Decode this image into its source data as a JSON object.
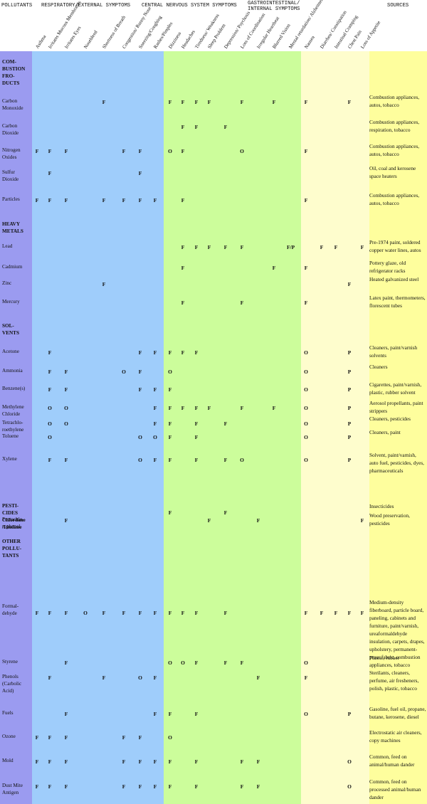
{
  "header": {
    "pollutants": "POLLUTANTS",
    "resp": "RESPIRATORY/EXTERNAL SYMPTOMS",
    "cns": "CENTRAL NERVOUS SYSTEM SYMPTOMS",
    "gi1": "GASTROINTESTINAL/",
    "gi2": "INTERNAL SYMPTOMS",
    "sources": "SOURCES"
  },
  "symptom_labels": [
    "Asthma",
    "Irritates Mucous Membranes",
    "Irritates Eyes",
    "Nosebleed",
    "Shortness of Breath",
    "Congestion/ Runny Nose",
    "Sneezing/Coughing",
    "Rashes/Pimples",
    "Dizziness",
    "Headaches",
    "Tiredness/ Weakness",
    "Sleep Problem",
    "Depression/ Psychosis",
    "Loss of Coordination",
    "Irregular Heartbeat",
    "Blurred Vision",
    "Mental retardation/ Alzheimer's Disease",
    "Nausea",
    "Diarrhea/ Constipation",
    "Intestinal Cramping",
    "Chest Pain",
    "Loss of Appetite"
  ],
  "colors": {
    "purple": "#9b9bf0",
    "blue": "#9fcdfb",
    "green": "#ccfd9b",
    "cream": "#fefdcd",
    "yellow": "#fefe9d"
  },
  "rows": [
    {
      "label": "COM-\nBUSTION\nFRO-\nDUCTS",
      "cat": true,
      "source": "",
      "marks": []
    },
    {
      "label": "Carbon\nMonoxide",
      "source": "Combustion appliances, autos, tobacco",
      "marks": [
        {
          "c": 4,
          "v": "F"
        },
        {
          "c": 8,
          "v": "F"
        },
        {
          "c": 9,
          "v": "F"
        },
        {
          "c": 10,
          "v": "F"
        },
        {
          "c": 11,
          "v": "F"
        },
        {
          "c": 13,
          "v": "F"
        },
        {
          "c": 15,
          "v": "F"
        },
        {
          "c": 17,
          "v": "F"
        },
        {
          "c": 20,
          "v": "F"
        }
      ]
    },
    {
      "label": "Carbon\nDioxide",
      "source": "Combustion appliances, respiration, tobacco",
      "marks": [
        {
          "c": 9,
          "v": "F"
        },
        {
          "c": 10,
          "v": "F"
        },
        {
          "c": 12,
          "v": "F"
        }
      ]
    },
    {
      "label": "Nitrogen\nOxides",
      "source": "Combustion appliances, autos, tobacco",
      "marks": [
        {
          "c": 0,
          "v": "F"
        },
        {
          "c": 1,
          "v": "F"
        },
        {
          "c": 2,
          "v": "F"
        },
        {
          "c": 5,
          "v": "F"
        },
        {
          "c": 6,
          "v": "F"
        },
        {
          "c": 8,
          "v": "O"
        },
        {
          "c": 9,
          "v": "F"
        },
        {
          "c": 13,
          "v": "O"
        },
        {
          "c": 17,
          "v": "F"
        }
      ]
    },
    {
      "label": "Sulfur\nDioxide",
      "source": "Oil, coal and kerosene space heaters",
      "marks": [
        {
          "c": 1,
          "v": "F"
        },
        {
          "c": 6,
          "v": "F"
        }
      ]
    },
    {
      "label": "Particles",
      "source": "Combustion appliances, autos, tobacco",
      "marks": [
        {
          "c": 0,
          "v": "F"
        },
        {
          "c": 1,
          "v": "F"
        },
        {
          "c": 2,
          "v": "F"
        },
        {
          "c": 4,
          "v": "F"
        },
        {
          "c": 5,
          "v": "F"
        },
        {
          "c": 6,
          "v": "F"
        },
        {
          "c": 7,
          "v": "F"
        },
        {
          "c": 9,
          "v": "F"
        },
        {
          "c": 17,
          "v": "F"
        }
      ]
    },
    {
      "label": "HEAVY\nMETALS",
      "cat": true,
      "source": "",
      "marks": []
    },
    {
      "label": "Lead",
      "source": "Pre-1974 paint, soldered copper water lines, autos",
      "marks": [
        {
          "c": 9,
          "v": "F"
        },
        {
          "c": 10,
          "v": "F"
        },
        {
          "c": 11,
          "v": "F"
        },
        {
          "c": 12,
          "v": "F"
        },
        {
          "c": 13,
          "v": "F"
        },
        {
          "c": 16,
          "v": "F/P"
        },
        {
          "c": 18,
          "v": "F"
        },
        {
          "c": 19,
          "v": "F"
        },
        {
          "c": 21,
          "v": "F"
        }
      ]
    },
    {
      "label": "Cadmium",
      "source": "Pottery glaze, old refrigerator racks",
      "marks": [
        {
          "c": 9,
          "v": "F"
        },
        {
          "c": 15,
          "v": "F"
        },
        {
          "c": 17,
          "v": "F"
        }
      ]
    },
    {
      "label": "Zinc",
      "source": "Heated galvanized steel",
      "marks": [
        {
          "c": 4,
          "v": "F"
        },
        {
          "c": 20,
          "v": "F"
        }
      ]
    },
    {
      "label": "Mercury",
      "source": "Latex paint, thermometers, florescent tubes",
      "marks": [
        {
          "c": 9,
          "v": "F"
        },
        {
          "c": 13,
          "v": "F"
        },
        {
          "c": 17,
          "v": "F"
        }
      ]
    },
    {
      "label": "SOL-\nVENTS",
      "cat": true,
      "source": "",
      "marks": []
    },
    {
      "label": "Acetone",
      "source": "Cleaners, paint/varnish solvents",
      "marks": [
        {
          "c": 1,
          "v": "F"
        },
        {
          "c": 6,
          "v": "F"
        },
        {
          "c": 7,
          "v": "F"
        },
        {
          "c": 8,
          "v": "F"
        },
        {
          "c": 9,
          "v": "F"
        },
        {
          "c": 10,
          "v": "F"
        },
        {
          "c": 17,
          "v": "O"
        },
        {
          "c": 20,
          "v": "P"
        }
      ]
    },
    {
      "label": "Ammonia",
      "source": "Cleaners",
      "marks": [
        {
          "c": 1,
          "v": "F"
        },
        {
          "c": 2,
          "v": "F"
        },
        {
          "c": 5,
          "v": "O"
        },
        {
          "c": 6,
          "v": "F"
        },
        {
          "c": 8,
          "v": "O"
        },
        {
          "c": 17,
          "v": "O"
        },
        {
          "c": 20,
          "v": "P"
        }
      ]
    },
    {
      "label": "Benzene(s)",
      "source": "Cigarettes, paint/varnish, plastic, rubber solvent",
      "marks": [
        {
          "c": 1,
          "v": "F"
        },
        {
          "c": 2,
          "v": "F"
        },
        {
          "c": 6,
          "v": "F"
        },
        {
          "c": 7,
          "v": "F"
        },
        {
          "c": 8,
          "v": "F"
        },
        {
          "c": 17,
          "v": "O"
        },
        {
          "c": 20,
          "v": "P"
        }
      ]
    },
    {
      "label": "Methylene\nChloride",
      "source": "Aerosol propellants, paint strippers",
      "marks": [
        {
          "c": 1,
          "v": "O"
        },
        {
          "c": 2,
          "v": "O"
        },
        {
          "c": 7,
          "v": "F"
        },
        {
          "c": 8,
          "v": "F"
        },
        {
          "c": 9,
          "v": "F"
        },
        {
          "c": 10,
          "v": "F"
        },
        {
          "c": 11,
          "v": "F"
        },
        {
          "c": 13,
          "v": "F"
        },
        {
          "c": 15,
          "v": "F"
        },
        {
          "c": 17,
          "v": "O"
        },
        {
          "c": 20,
          "v": "P"
        }
      ]
    },
    {
      "label": "Tetrachlo-\nroethylene",
      "source": "Cleaners, pesticides",
      "marks": [
        {
          "c": 1,
          "v": "O"
        },
        {
          "c": 2,
          "v": "O"
        },
        {
          "c": 7,
          "v": "F"
        },
        {
          "c": 8,
          "v": "F"
        },
        {
          "c": 10,
          "v": "F"
        },
        {
          "c": 12,
          "v": "F"
        },
        {
          "c": 17,
          "v": "O"
        },
        {
          "c": 20,
          "v": "P"
        }
      ]
    },
    {
      "label": "Toluene",
      "source": "Cleaners, paint",
      "marks": [
        {
          "c": 1,
          "v": "O"
        },
        {
          "c": 6,
          "v": "O"
        },
        {
          "c": 7,
          "v": "O"
        },
        {
          "c": 8,
          "v": "F"
        },
        {
          "c": 10,
          "v": "F"
        },
        {
          "c": 17,
          "v": "O"
        },
        {
          "c": 20,
          "v": "P"
        }
      ]
    },
    {
      "label": "Xylene",
      "source": "Solvent, paint/varnish, auto fuel, pesticides, dyes, pharmaceuticals",
      "marks": [
        {
          "c": 1,
          "v": "F"
        },
        {
          "c": 2,
          "v": "F"
        },
        {
          "c": 6,
          "v": "O"
        },
        {
          "c": 7,
          "v": "F"
        },
        {
          "c": 8,
          "v": "F"
        },
        {
          "c": 10,
          "v": "F"
        },
        {
          "c": 12,
          "v": "F"
        },
        {
          "c": 13,
          "v": "O"
        },
        {
          "c": 17,
          "v": "O"
        },
        {
          "c": 20,
          "v": "P"
        }
      ]
    },
    {
      "label": "PESTI-\nCIDES\nChlordane\n/Lindane",
      "cat": true,
      "source": "Insecticides",
      "marks": [
        {
          "c": 8,
          "v": "F"
        },
        {
          "c": 12,
          "v": "F"
        }
      ]
    },
    {
      "label": "Pentachlo-\nrophenol",
      "source": "Wood preservation, pesticides",
      "marks": [
        {
          "c": 2,
          "v": "F"
        },
        {
          "c": 11,
          "v": "F"
        },
        {
          "c": 14,
          "v": "F"
        },
        {
          "c": 21,
          "v": "F"
        }
      ]
    },
    {
      "label": "OTHER\nPOLLU-\nTANTS",
      "cat": true,
      "source": "",
      "marks": []
    },
    {
      "label": "Formal-\ndehyde",
      "source": "Medium-density fiberboard, particle board, paneling, cabinets and furniture, paint/varnish, ureaformaldehyde insulation, carpets, drapes, upholstery, permanent-press fabric, combustion appliances, tobacco",
      "marks": [
        {
          "c": 0,
          "v": "F"
        },
        {
          "c": 1,
          "v": "F"
        },
        {
          "c": 2,
          "v": "F"
        },
        {
          "c": 3,
          "v": "O"
        },
        {
          "c": 4,
          "v": "F"
        },
        {
          "c": 5,
          "v": "F"
        },
        {
          "c": 6,
          "v": "F"
        },
        {
          "c": 7,
          "v": "F"
        },
        {
          "c": 8,
          "v": "F"
        },
        {
          "c": 9,
          "v": "F"
        },
        {
          "c": 10,
          "v": "F"
        },
        {
          "c": 12,
          "v": "F"
        },
        {
          "c": 17,
          "v": "F"
        },
        {
          "c": 18,
          "v": "F"
        },
        {
          "c": 19,
          "v": "F"
        },
        {
          "c": 20,
          "v": "F"
        },
        {
          "c": 21,
          "v": "F"
        }
      ]
    },
    {
      "label": "Styrene",
      "source": "Plastic, rubber",
      "marks": [
        {
          "c": 2,
          "v": "F"
        },
        {
          "c": 8,
          "v": "O"
        },
        {
          "c": 9,
          "v": "O"
        },
        {
          "c": 10,
          "v": "F"
        },
        {
          "c": 12,
          "v": "F"
        },
        {
          "c": 13,
          "v": "F"
        },
        {
          "c": 17,
          "v": "O"
        }
      ]
    },
    {
      "label": "Phenols\n(Carbolic\nAcid)",
      "source": "Sterilants, cleaners, perfume, air fresheners, polish, plastic, tobacco",
      "marks": [
        {
          "c": 1,
          "v": "F"
        },
        {
          "c": 4,
          "v": "F"
        },
        {
          "c": 6,
          "v": "O"
        },
        {
          "c": 7,
          "v": "F"
        },
        {
          "c": 14,
          "v": "F"
        },
        {
          "c": 17,
          "v": "F"
        }
      ]
    },
    {
      "label": "Fuels",
      "source": "Gasoline, fuel oil, propane, butane, kerosene, diesel",
      "marks": [
        {
          "c": 2,
          "v": "F"
        },
        {
          "c": 7,
          "v": "F"
        },
        {
          "c": 8,
          "v": "F"
        },
        {
          "c": 10,
          "v": "F"
        },
        {
          "c": 17,
          "v": "O"
        },
        {
          "c": 20,
          "v": "P"
        }
      ]
    },
    {
      "label": "Ozone",
      "source": "Electrostatic air cleaners, copy machines",
      "marks": [
        {
          "c": 0,
          "v": "F"
        },
        {
          "c": 1,
          "v": "F"
        },
        {
          "c": 2,
          "v": "F"
        },
        {
          "c": 5,
          "v": "F"
        },
        {
          "c": 6,
          "v": "F"
        },
        {
          "c": 8,
          "v": "O"
        }
      ]
    },
    {
      "label": "Mold",
      "source": "Common, feed on animal/human dander",
      "marks": [
        {
          "c": 0,
          "v": "F"
        },
        {
          "c": 1,
          "v": "F"
        },
        {
          "c": 2,
          "v": "F"
        },
        {
          "c": 5,
          "v": "F"
        },
        {
          "c": 6,
          "v": "F"
        },
        {
          "c": 7,
          "v": "F"
        },
        {
          "c": 8,
          "v": "F"
        },
        {
          "c": 10,
          "v": "F"
        },
        {
          "c": 13,
          "v": "F"
        },
        {
          "c": 14,
          "v": "F"
        },
        {
          "c": 20,
          "v": "O"
        }
      ]
    },
    {
      "label": "Dust Mite\nAntigen",
      "source": "Common, feed on processed animal/human dander",
      "marks": [
        {
          "c": 0,
          "v": "F"
        },
        {
          "c": 1,
          "v": "F"
        },
        {
          "c": 2,
          "v": "F"
        },
        {
          "c": 5,
          "v": "F"
        },
        {
          "c": 6,
          "v": "F"
        },
        {
          "c": 7,
          "v": "F"
        },
        {
          "c": 8,
          "v": "F"
        },
        {
          "c": 10,
          "v": "F"
        },
        {
          "c": 13,
          "v": "F"
        },
        {
          "c": 14,
          "v": "F"
        },
        {
          "c": 20,
          "v": "O"
        }
      ]
    }
  ]
}
